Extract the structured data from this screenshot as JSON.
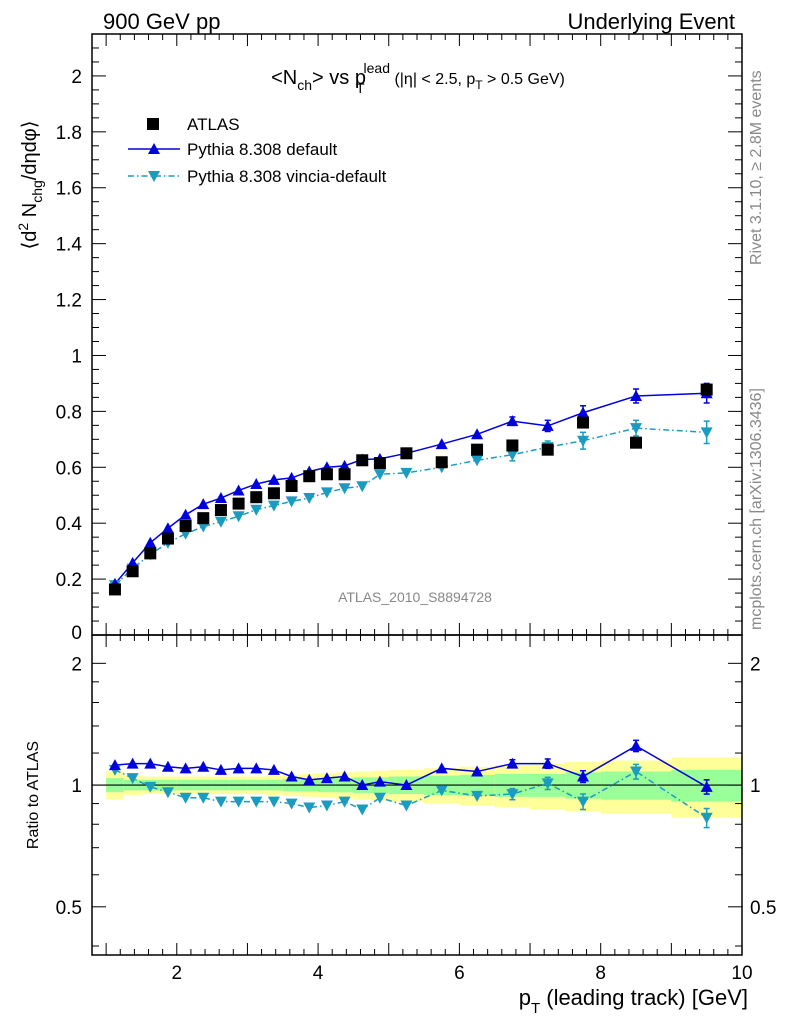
{
  "header": {
    "left": "900 GeV pp",
    "right": "Underlying Event"
  },
  "side": {
    "rivet": "Rivet 3.1.10, ≥ 2.8M events",
    "mcplots": "mcplots.cern.ch [arXiv:1306.3436]"
  },
  "watermark": "ATLAS_2010_S8894728",
  "colors": {
    "atlas": "#000000",
    "pythia_default": "#0000dd",
    "pythia_vincia": "#1a9bbf",
    "band_inner": "#99ff99",
    "band_outer": "#ffff99"
  },
  "chart_data": [
    {
      "type": "scatter",
      "title_parts": [
        "<N",
        "ch",
        "> vs p",
        "T",
        "lead",
        " (|η| < 2.5, p",
        "T",
        " > 0.5 GeV)"
      ],
      "ylabel_parts": [
        "⟨d",
        "2",
        " N",
        "chg",
        "/dηdφ⟩"
      ],
      "xlim": [
        0.8,
        10
      ],
      "ylim": [
        0,
        2.15
      ],
      "y_ticks": [
        0.2,
        0.4,
        0.6,
        0.8,
        1,
        1.2,
        1.4,
        1.6,
        1.8,
        2
      ],
      "y_tick_labels": [
        "0.2",
        "0.4",
        "0.6",
        "0.8",
        "1",
        "1.2",
        "1.4",
        "1.6",
        "1.8",
        "2"
      ],
      "y_zero_label": "0",
      "legend_position": "top-left",
      "x": [
        1.125,
        1.375,
        1.625,
        1.875,
        2.125,
        2.375,
        2.625,
        2.875,
        3.125,
        3.375,
        3.625,
        3.875,
        4.125,
        4.375,
        4.625,
        4.875,
        5.25,
        5.75,
        6.25,
        6.75,
        7.25,
        7.75,
        8.5,
        9.5
      ],
      "series": [
        {
          "name": "ATLAS",
          "marker": "square",
          "values": [
            0.163,
            0.228,
            0.292,
            0.345,
            0.39,
            0.418,
            0.447,
            0.47,
            0.493,
            0.507,
            0.533,
            0.568,
            0.575,
            0.575,
            0.625,
            0.615,
            0.65,
            0.618,
            0.663,
            0.678,
            0.663,
            0.76,
            0.688,
            0.878
          ]
        },
        {
          "name": "Pythia 8.308 default",
          "marker": "triangle-up",
          "line": "solid",
          "values": [
            0.183,
            0.258,
            0.33,
            0.382,
            0.43,
            0.468,
            0.49,
            0.517,
            0.54,
            0.555,
            0.562,
            0.585,
            0.6,
            0.605,
            0.628,
            0.63,
            0.65,
            0.683,
            0.718,
            0.765,
            0.748,
            0.795,
            0.855,
            0.865
          ]
        },
        {
          "name": "Pythia 8.308 vincia-default",
          "marker": "triangle-down",
          "line": "dash-dot",
          "values": [
            0.178,
            0.238,
            0.288,
            0.33,
            0.362,
            0.388,
            0.405,
            0.425,
            0.448,
            0.463,
            0.478,
            0.49,
            0.51,
            0.525,
            0.532,
            0.575,
            0.58,
            0.6,
            0.625,
            0.645,
            0.672,
            0.695,
            0.74,
            0.725
          ]
        }
      ],
      "errors": {
        "Pythia 8.308 default": [
          0,
          0,
          0,
          0,
          0,
          0,
          0,
          0,
          0,
          0,
          0,
          0,
          0,
          0,
          0,
          0,
          0,
          0,
          0,
          0.015,
          0.02,
          0.025,
          0.025,
          0.035
        ],
        "Pythia 8.308 vincia-default": [
          0,
          0,
          0,
          0,
          0,
          0,
          0,
          0,
          0,
          0,
          0,
          0,
          0,
          0,
          0,
          0,
          0,
          0,
          0,
          0.022,
          0.022,
          0.03,
          0.028,
          0.04
        ]
      }
    },
    {
      "type": "scatter",
      "ylabel": "Ratio to ATLAS",
      "xlabel_parts": [
        "p",
        "T",
        " (leading track) [GeV]"
      ],
      "xlim": [
        0.8,
        10
      ],
      "ylim": [
        0.38,
        2.35
      ],
      "log_y": true,
      "x_ticks": [
        2,
        4,
        6,
        8,
        10
      ],
      "x_tick_labels": [
        "2",
        "4",
        "6",
        "8",
        "10"
      ],
      "y_ticks": [
        0.5,
        1,
        2
      ],
      "y_tick_labels": [
        "0.5",
        "1",
        "2"
      ],
      "reference_line": 1,
      "x": [
        1.125,
        1.375,
        1.625,
        1.875,
        2.125,
        2.375,
        2.625,
        2.875,
        3.125,
        3.375,
        3.625,
        3.875,
        4.125,
        4.375,
        4.625,
        4.875,
        5.25,
        5.75,
        6.25,
        6.75,
        7.25,
        7.75,
        8.5,
        9.5
      ],
      "x_edges": [
        1.0,
        1.25,
        1.5,
        1.75,
        2.0,
        2.25,
        2.5,
        2.75,
        3.0,
        3.25,
        3.5,
        3.75,
        4.0,
        4.25,
        4.5,
        4.75,
        5.0,
        5.5,
        6.0,
        6.5,
        7.0,
        7.5,
        8.0,
        9.0,
        10.0
      ],
      "band_inner_halfwidth": [
        0.04,
        0.03,
        0.03,
        0.03,
        0.03,
        0.03,
        0.03,
        0.03,
        0.03,
        0.03,
        0.035,
        0.035,
        0.04,
        0.04,
        0.045,
        0.045,
        0.05,
        0.055,
        0.06,
        0.065,
        0.065,
        0.075,
        0.08,
        0.09
      ],
      "band_outer_halfwidth": [
        0.08,
        0.055,
        0.05,
        0.05,
        0.05,
        0.05,
        0.05,
        0.05,
        0.05,
        0.055,
        0.06,
        0.065,
        0.07,
        0.075,
        0.08,
        0.085,
        0.09,
        0.1,
        0.11,
        0.12,
        0.13,
        0.14,
        0.15,
        0.17
      ],
      "series": [
        {
          "name": "Pythia 8.308 default",
          "values": [
            1.12,
            1.13,
            1.13,
            1.11,
            1.1,
            1.11,
            1.09,
            1.1,
            1.1,
            1.09,
            1.05,
            1.03,
            1.04,
            1.05,
            1.0,
            1.02,
            1.0,
            1.1,
            1.08,
            1.13,
            1.13,
            1.05,
            1.25,
            0.99
          ],
          "errors": [
            0,
            0,
            0,
            0,
            0,
            0,
            0,
            0,
            0,
            0,
            0,
            0,
            0,
            0,
            0,
            0,
            0,
            0,
            0,
            0.025,
            0.03,
            0.035,
            0.04,
            0.04
          ]
        },
        {
          "name": "Pythia 8.308 vincia-default",
          "values": [
            1.09,
            1.04,
            0.99,
            0.96,
            0.93,
            0.93,
            0.91,
            0.91,
            0.91,
            0.91,
            0.9,
            0.88,
            0.89,
            0.91,
            0.87,
            0.93,
            0.89,
            0.97,
            0.94,
            0.95,
            1.01,
            0.91,
            1.08,
            0.83
          ],
          "errors": [
            0,
            0,
            0,
            0,
            0,
            0,
            0,
            0,
            0,
            0,
            0,
            0,
            0,
            0,
            0,
            0,
            0,
            0,
            0,
            0.03,
            0.035,
            0.04,
            0.045,
            0.045
          ]
        }
      ]
    }
  ]
}
